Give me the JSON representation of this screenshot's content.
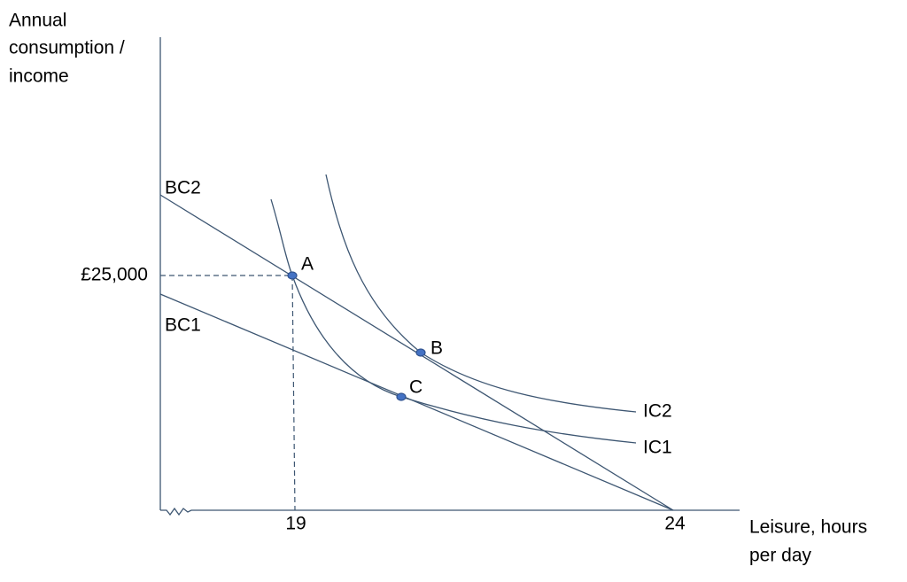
{
  "axes": {
    "y_label": [
      "Annual",
      "consumption /",
      "income"
    ],
    "x_label": [
      "Leisure, hours",
      "per day"
    ],
    "y_tick": "£25,000",
    "x_ticks": [
      "19",
      "24"
    ]
  },
  "lines": {
    "bc2": "BC2",
    "bc1": "BC1",
    "ic2": "IC2",
    "ic1": "IC1"
  },
  "points": {
    "a": "A",
    "b": "B",
    "c": "C"
  }
}
